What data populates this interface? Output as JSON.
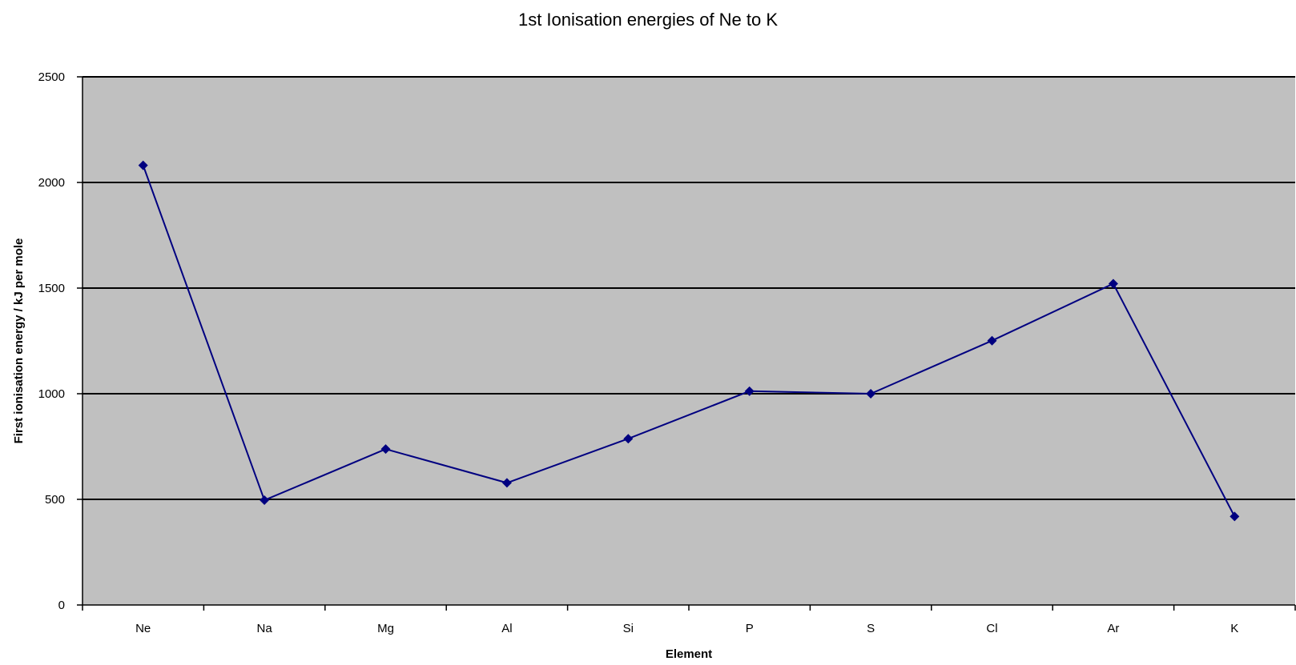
{
  "chart_data": {
    "type": "line",
    "title": "1st Ionisation energies of Ne to K",
    "xlabel": "Element",
    "ylabel": "First ionisation energy / kJ per mole",
    "categories": [
      "Ne",
      "Na",
      "Mg",
      "Al",
      "Si",
      "P",
      "S",
      "Cl",
      "Ar",
      "K"
    ],
    "series": [
      {
        "values": [
          2081,
          496,
          738,
          578,
          787,
          1012,
          1000,
          1251,
          1521,
          419
        ]
      }
    ],
    "ylim": [
      0,
      2500
    ],
    "yticks": [
      "0",
      "500",
      "1000",
      "1500",
      "2000",
      "2500"
    ],
    "grid": true,
    "legend": "none",
    "colors": {
      "plot_background": "#c0c0c0",
      "series_line": "#000080",
      "gridline": "#000000",
      "axis": "#000000"
    }
  }
}
